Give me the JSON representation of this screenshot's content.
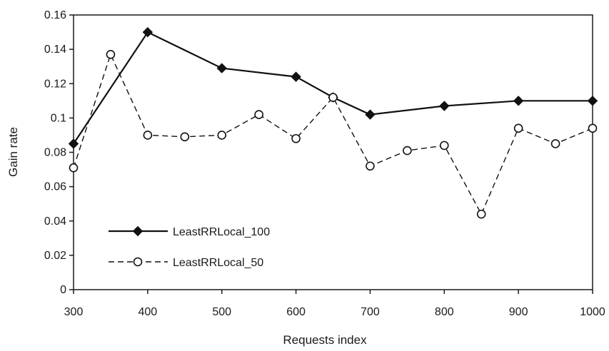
{
  "chart_data": {
    "type": "line",
    "title": "",
    "xlabel": "Requests index",
    "ylabel": "Gain rate",
    "xlim": [
      300,
      1000
    ],
    "ylim": [
      0,
      0.16
    ],
    "x_ticks": [
      300,
      400,
      500,
      600,
      700,
      800,
      900,
      1000
    ],
    "y_ticks": [
      0,
      0.02,
      0.04,
      0.06,
      0.08,
      0.1,
      0.12,
      0.14,
      0.16
    ],
    "x_tick_labels": [
      "300",
      "400",
      "500",
      "600",
      "700",
      "800",
      "900",
      "1000"
    ],
    "y_tick_labels": [
      "0",
      "0.02",
      "0.04",
      "0.06",
      "0.08",
      "0.1",
      "0.12",
      "0.14",
      "0.16"
    ],
    "grid": false,
    "legend_position": "lower-left",
    "series": [
      {
        "name": "LeastRRLocal_100",
        "style": "solid",
        "marker": "diamond",
        "color": "#111111",
        "x": [
          300,
          400,
          500,
          600,
          650,
          700,
          800,
          900,
          1000
        ],
        "y": [
          0.085,
          0.15,
          0.129,
          0.124,
          0.112,
          0.102,
          0.107,
          0.11,
          0.11
        ]
      },
      {
        "name": "LeastRRLocal_50",
        "style": "dashed",
        "marker": "circle",
        "color": "#111111",
        "x": [
          300,
          350,
          400,
          450,
          500,
          550,
          600,
          650,
          700,
          750,
          800,
          850,
          900,
          950,
          1000
        ],
        "y": [
          0.071,
          0.137,
          0.09,
          0.089,
          0.09,
          0.102,
          0.088,
          0.112,
          0.072,
          0.081,
          0.084,
          0.044,
          0.094,
          0.085,
          0.094
        ]
      }
    ]
  }
}
